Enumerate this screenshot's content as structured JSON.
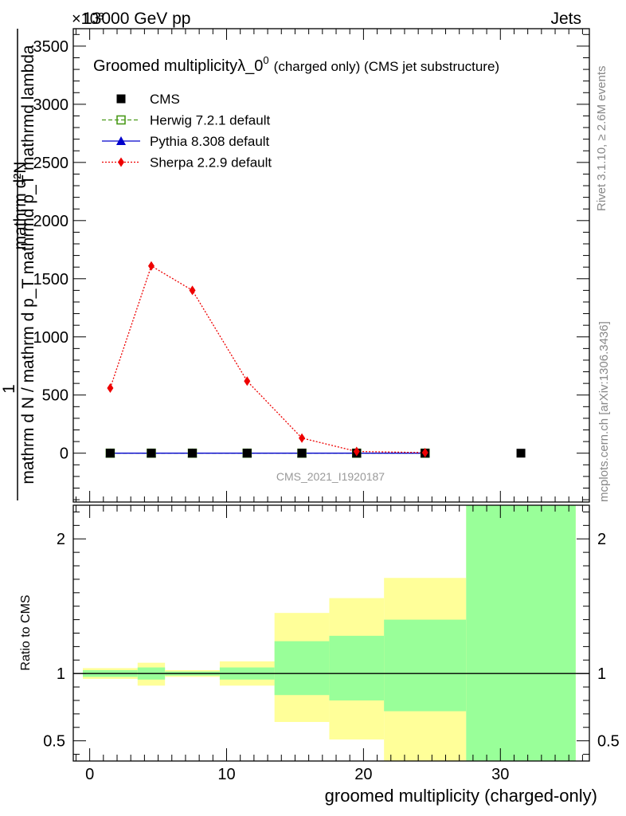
{
  "header": {
    "energy_label": "13000 GeV pp",
    "process_label": "Jets",
    "exponent_label": "×10³"
  },
  "side_labels": {
    "rivet": "Rivet 3.1.10, ≥ 2.6M events",
    "mcplots": "mcplots.cern.ch [arXiv:1306.3436]"
  },
  "chart_data": [
    {
      "type": "line",
      "title": "Groomed multiplicityλ_0⁰ (charged only) (CMS jet substructure)",
      "title_main": "Groomed multiplicityλ_0",
      "title_sup": "0",
      "title_small": "(charged only) (CMS jet substructure)",
      "ylabel_numerator": "mathrm d²N",
      "ylabel_denominator": "mathrm d N / mathrm d p_T mathrmd p_T mathrmd lambda",
      "ylabel_prefix": "1",
      "ylim": [
        -420,
        3650
      ],
      "y_scale_note": "×10³",
      "yticks": [
        0,
        500,
        1000,
        1500,
        2000,
        2500,
        3000,
        3500
      ],
      "ytick_labels": [
        "0",
        "500",
        "1000",
        "1500",
        "2000",
        "2500",
        "3000",
        "3500"
      ],
      "xlim": [
        -1.2,
        36.5
      ],
      "watermark": "CMS_2021_I1920187",
      "series": [
        {
          "name": "CMS",
          "marker": "square-filled",
          "color": "#000000",
          "x": [
            1.5,
            4.5,
            7.5,
            11.5,
            15.5,
            19.5,
            24.5,
            31.5
          ],
          "values": [
            0,
            0,
            0,
            0,
            0,
            0,
            0,
            0
          ]
        },
        {
          "name": "Herwig 7.2.1 default",
          "marker": "square-open",
          "line": "dashed",
          "color": "#4a9a19",
          "x": [
            1.5,
            4.5,
            7.5,
            11.5,
            15.5,
            19.5,
            24.5
          ],
          "values": [
            0,
            0,
            0,
            0,
            0,
            0,
            0
          ]
        },
        {
          "name": "Pythia 8.308 default",
          "marker": "triangle",
          "line": "solid",
          "color": "#0000cc",
          "x": [
            1.5,
            4.5,
            7.5,
            11.5,
            15.5,
            19.5,
            24.5
          ],
          "values": [
            0,
            0,
            0,
            0,
            0,
            0,
            0
          ]
        },
        {
          "name": "Sherpa 2.2.9 default",
          "marker": "diamond",
          "line": "dotted",
          "color": "#ee0000",
          "x": [
            1.5,
            4.5,
            7.5,
            11.5,
            15.5,
            19.5,
            24.5
          ],
          "values": [
            560,
            1610,
            1400,
            620,
            130,
            15,
            5
          ]
        }
      ]
    },
    {
      "type": "area",
      "ylabel": "Ratio to CMS",
      "xlabel": "groomed multiplicity (charged-only)",
      "ylim": [
        0.35,
        2.25
      ],
      "xlim": [
        -1.2,
        36.5
      ],
      "yticks": [
        0.5,
        1,
        2
      ],
      "ytick_labels": [
        "0.5",
        "1",
        "2"
      ],
      "xticks": [
        0,
        10,
        20,
        30
      ],
      "xtick_labels": [
        "0",
        "10",
        "20",
        "30"
      ],
      "reference_line": 1,
      "bands": [
        {
          "x0": -0.5,
          "x1": 3.5,
          "yellow": [
            0.96,
            1.04
          ],
          "green": [
            0.975,
            1.025
          ]
        },
        {
          "x0": 3.5,
          "x1": 5.5,
          "yellow": [
            0.91,
            1.08
          ],
          "green": [
            0.955,
            1.045
          ]
        },
        {
          "x0": 5.5,
          "x1": 9.5,
          "yellow": [
            0.975,
            1.025
          ],
          "green": [
            0.985,
            1.015
          ]
        },
        {
          "x0": 9.5,
          "x1": 13.5,
          "yellow": [
            0.91,
            1.09
          ],
          "green": [
            0.955,
            1.045
          ]
        },
        {
          "x0": 13.5,
          "x1": 17.5,
          "yellow": [
            0.64,
            1.45
          ],
          "green": [
            0.84,
            1.24
          ]
        },
        {
          "x0": 17.5,
          "x1": 21.5,
          "yellow": [
            0.51,
            1.56
          ],
          "green": [
            0.8,
            1.28
          ]
        },
        {
          "x0": 21.5,
          "x1": 27.5,
          "yellow": [
            0.35,
            1.71
          ],
          "green": [
            0.72,
            1.4
          ]
        },
        {
          "x0": 27.5,
          "x1": 35.5,
          "yellow": [
            0.35,
            2.25
          ],
          "green": [
            0.35,
            2.25
          ]
        }
      ],
      "colors": {
        "yellow": "#ffff99",
        "green": "#99ff99"
      }
    }
  ]
}
